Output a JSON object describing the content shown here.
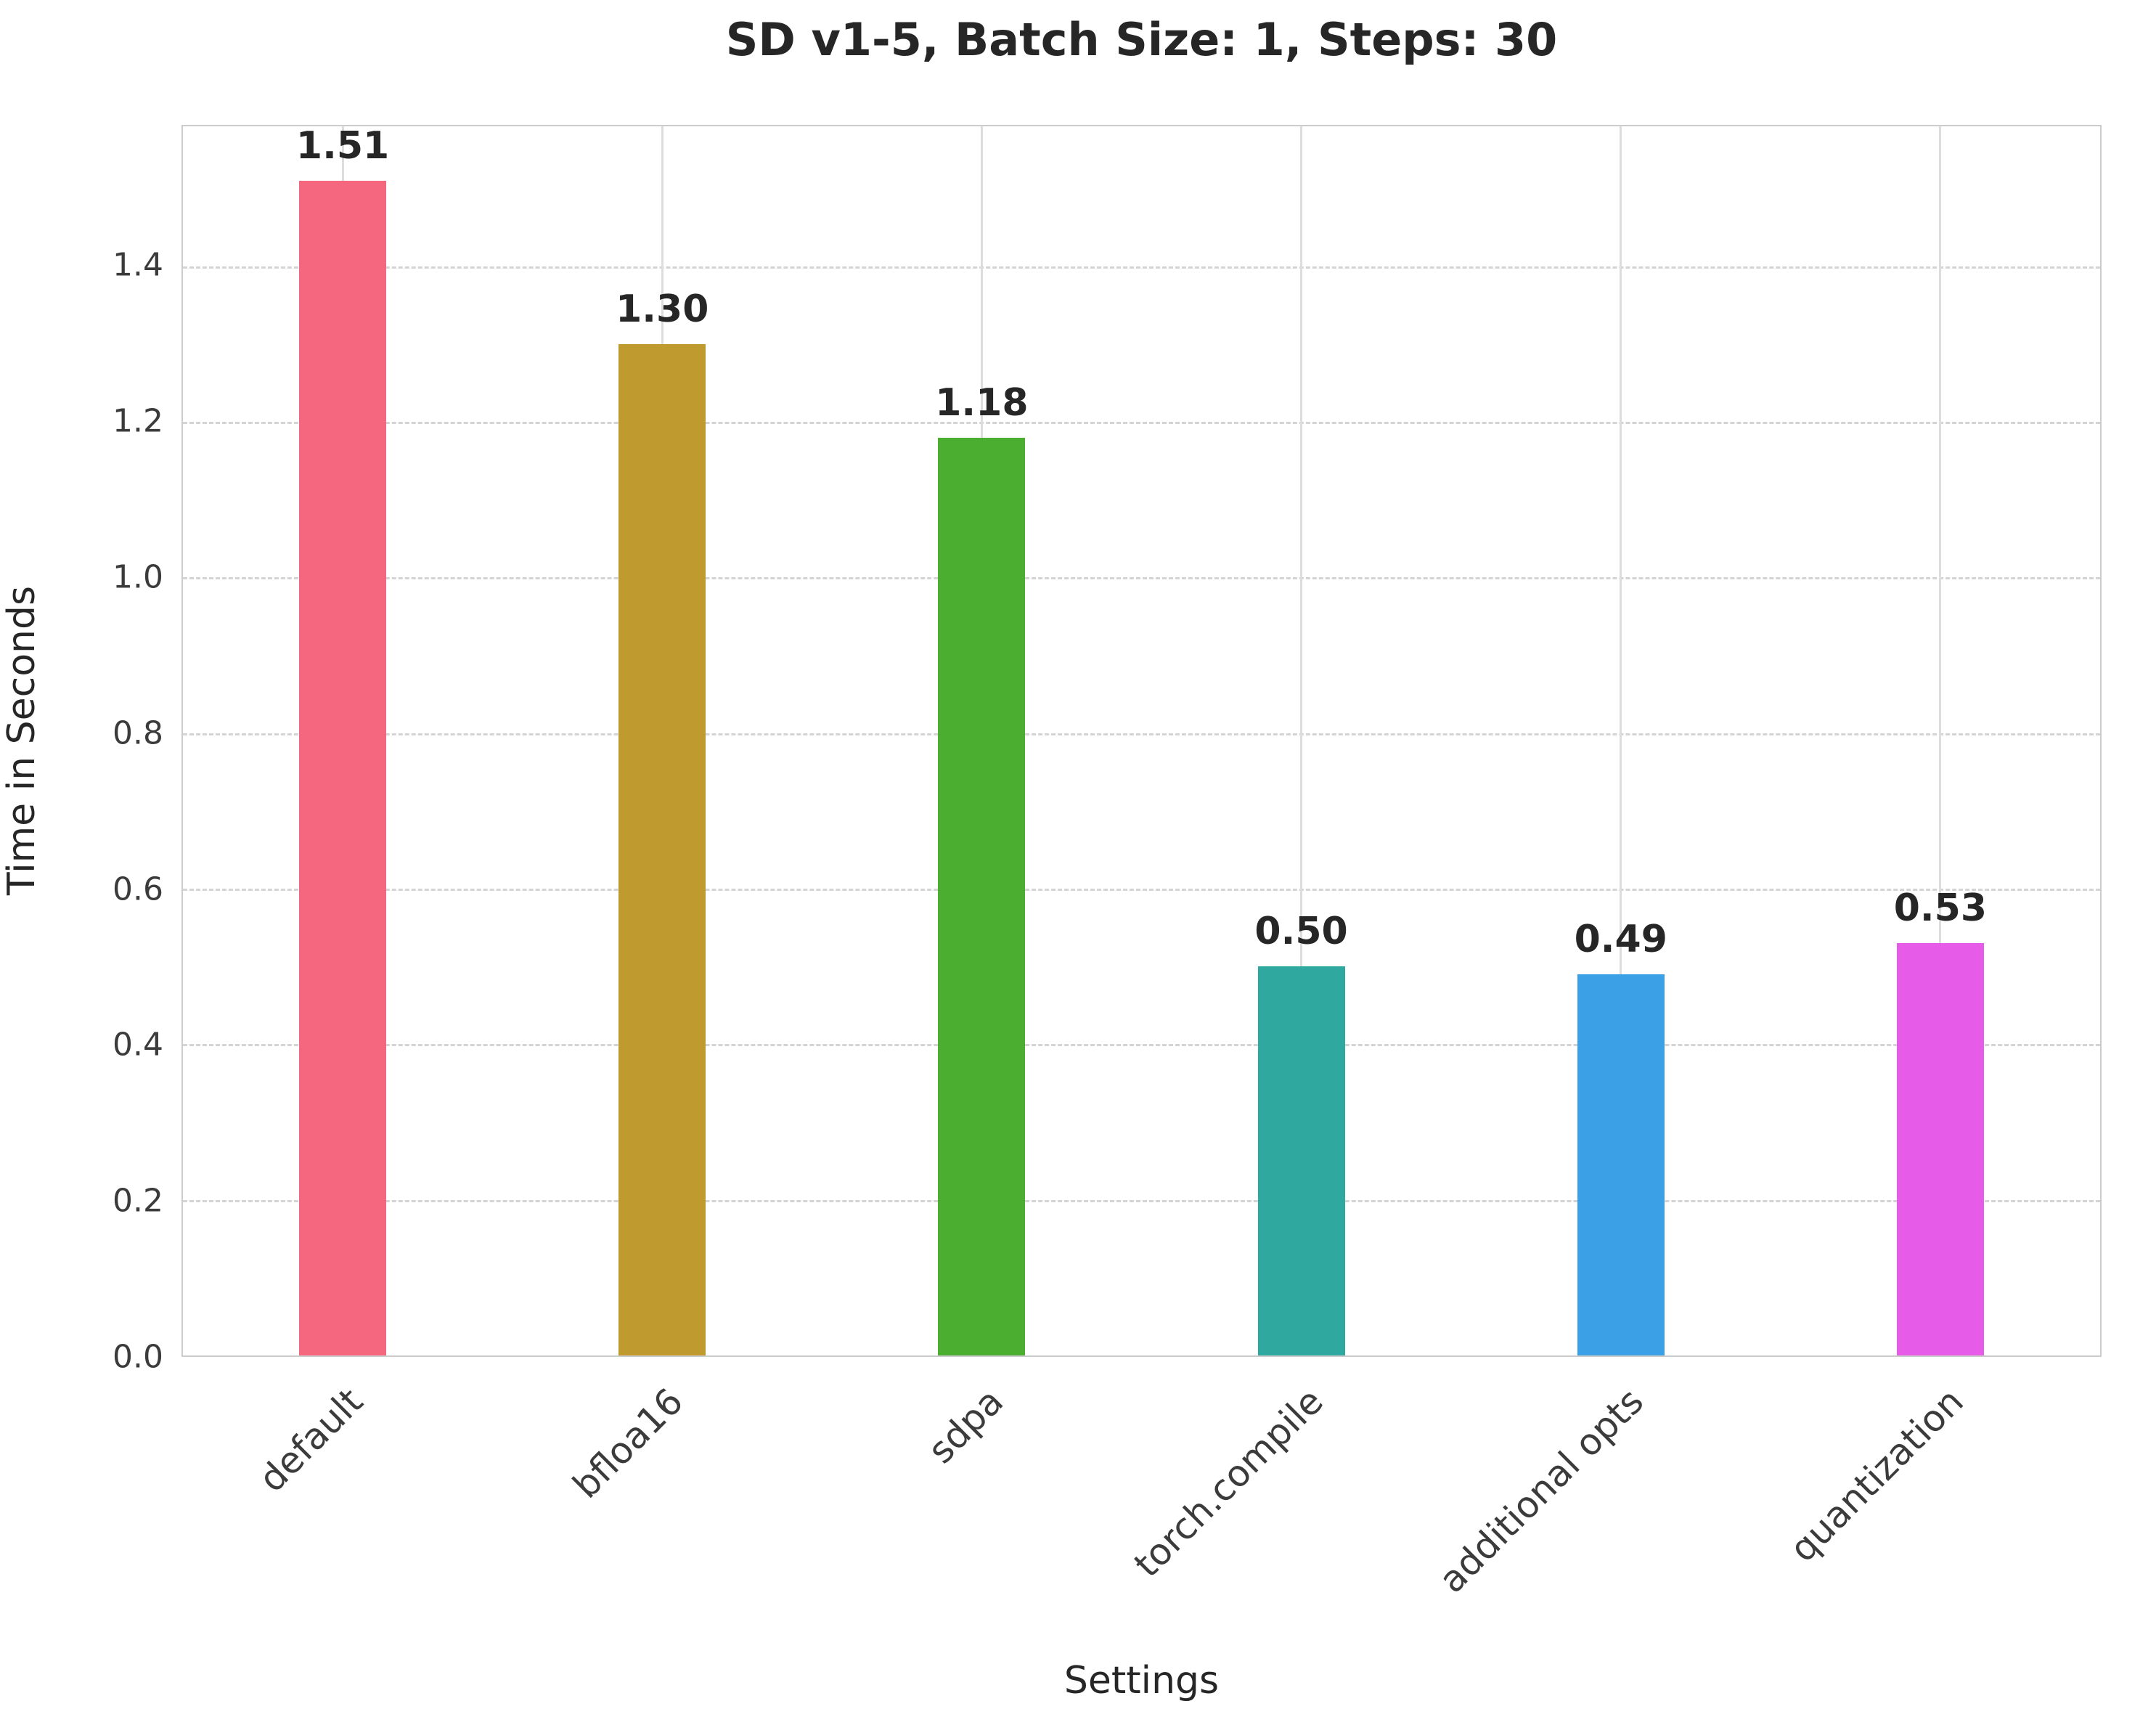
{
  "chart_data": {
    "type": "bar",
    "title": "SD v1-5, Batch Size: 1, Steps: 30",
    "xlabel": "Settings",
    "ylabel": "Time in Seconds",
    "categories": [
      "default",
      "bfloa16",
      "sdpa",
      "torch.compile",
      "additional opts",
      "quantization"
    ],
    "values": [
      1.51,
      1.3,
      1.18,
      0.5,
      0.49,
      0.53
    ],
    "value_labels": [
      "1.51",
      "1.30",
      "1.18",
      "0.50",
      "0.49",
      "0.53"
    ],
    "colors": [
      "#f4677f",
      "#bf9b2f",
      "#4cae30",
      "#2fa8a0",
      "#3ca0e6",
      "#e65ce8"
    ],
    "ylim": [
      0,
      1.58
    ],
    "yticks": [
      0.0,
      0.2,
      0.4,
      0.6,
      0.8,
      1.0,
      1.2,
      1.4
    ],
    "ytick_labels": [
      "0.0",
      "0.2",
      "0.4",
      "0.6",
      "0.8",
      "1.0",
      "1.2",
      "1.4"
    ],
    "grid": "dashed horizontal gridlines + solid vertical lines at category centers",
    "legend": "none"
  }
}
